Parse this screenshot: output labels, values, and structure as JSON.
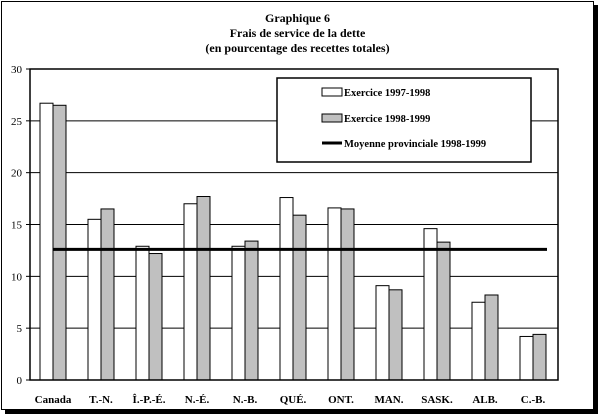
{
  "chart_data": {
    "type": "bar",
    "title": "Graphique 6",
    "subtitle_lines": [
      "Frais de service de la dette",
      "(en pourcentage des recettes totales)"
    ],
    "categories": [
      "Canada",
      "T.-N.",
      "Î.-P.-É.",
      "N.-É.",
      "N.-B.",
      "QUÉ.",
      "ONT.",
      "MAN.",
      "SASK.",
      "ALB.",
      "C.-B."
    ],
    "series": [
      {
        "name": "Exercice 1997-1998",
        "color": "#ffffff",
        "values": [
          26.7,
          15.5,
          12.9,
          17.0,
          12.9,
          17.6,
          16.6,
          9.1,
          14.6,
          7.5,
          4.2
        ]
      },
      {
        "name": "Exercice 1998-1999",
        "color": "#c0c0c0",
        "values": [
          26.5,
          16.5,
          12.2,
          17.7,
          13.4,
          15.9,
          16.5,
          8.7,
          13.3,
          8.2,
          4.4
        ]
      }
    ],
    "reference_line": {
      "name": "Moyenne provinciale 1998-1999",
      "value": 12.6,
      "color": "#000000"
    },
    "ylim": [
      0,
      30
    ],
    "yticks": [
      "0",
      "5",
      "10",
      "15",
      "20",
      "25",
      "30"
    ],
    "grid": true,
    "legend_position": "top-right",
    "xlabel": "",
    "ylabel": ""
  }
}
